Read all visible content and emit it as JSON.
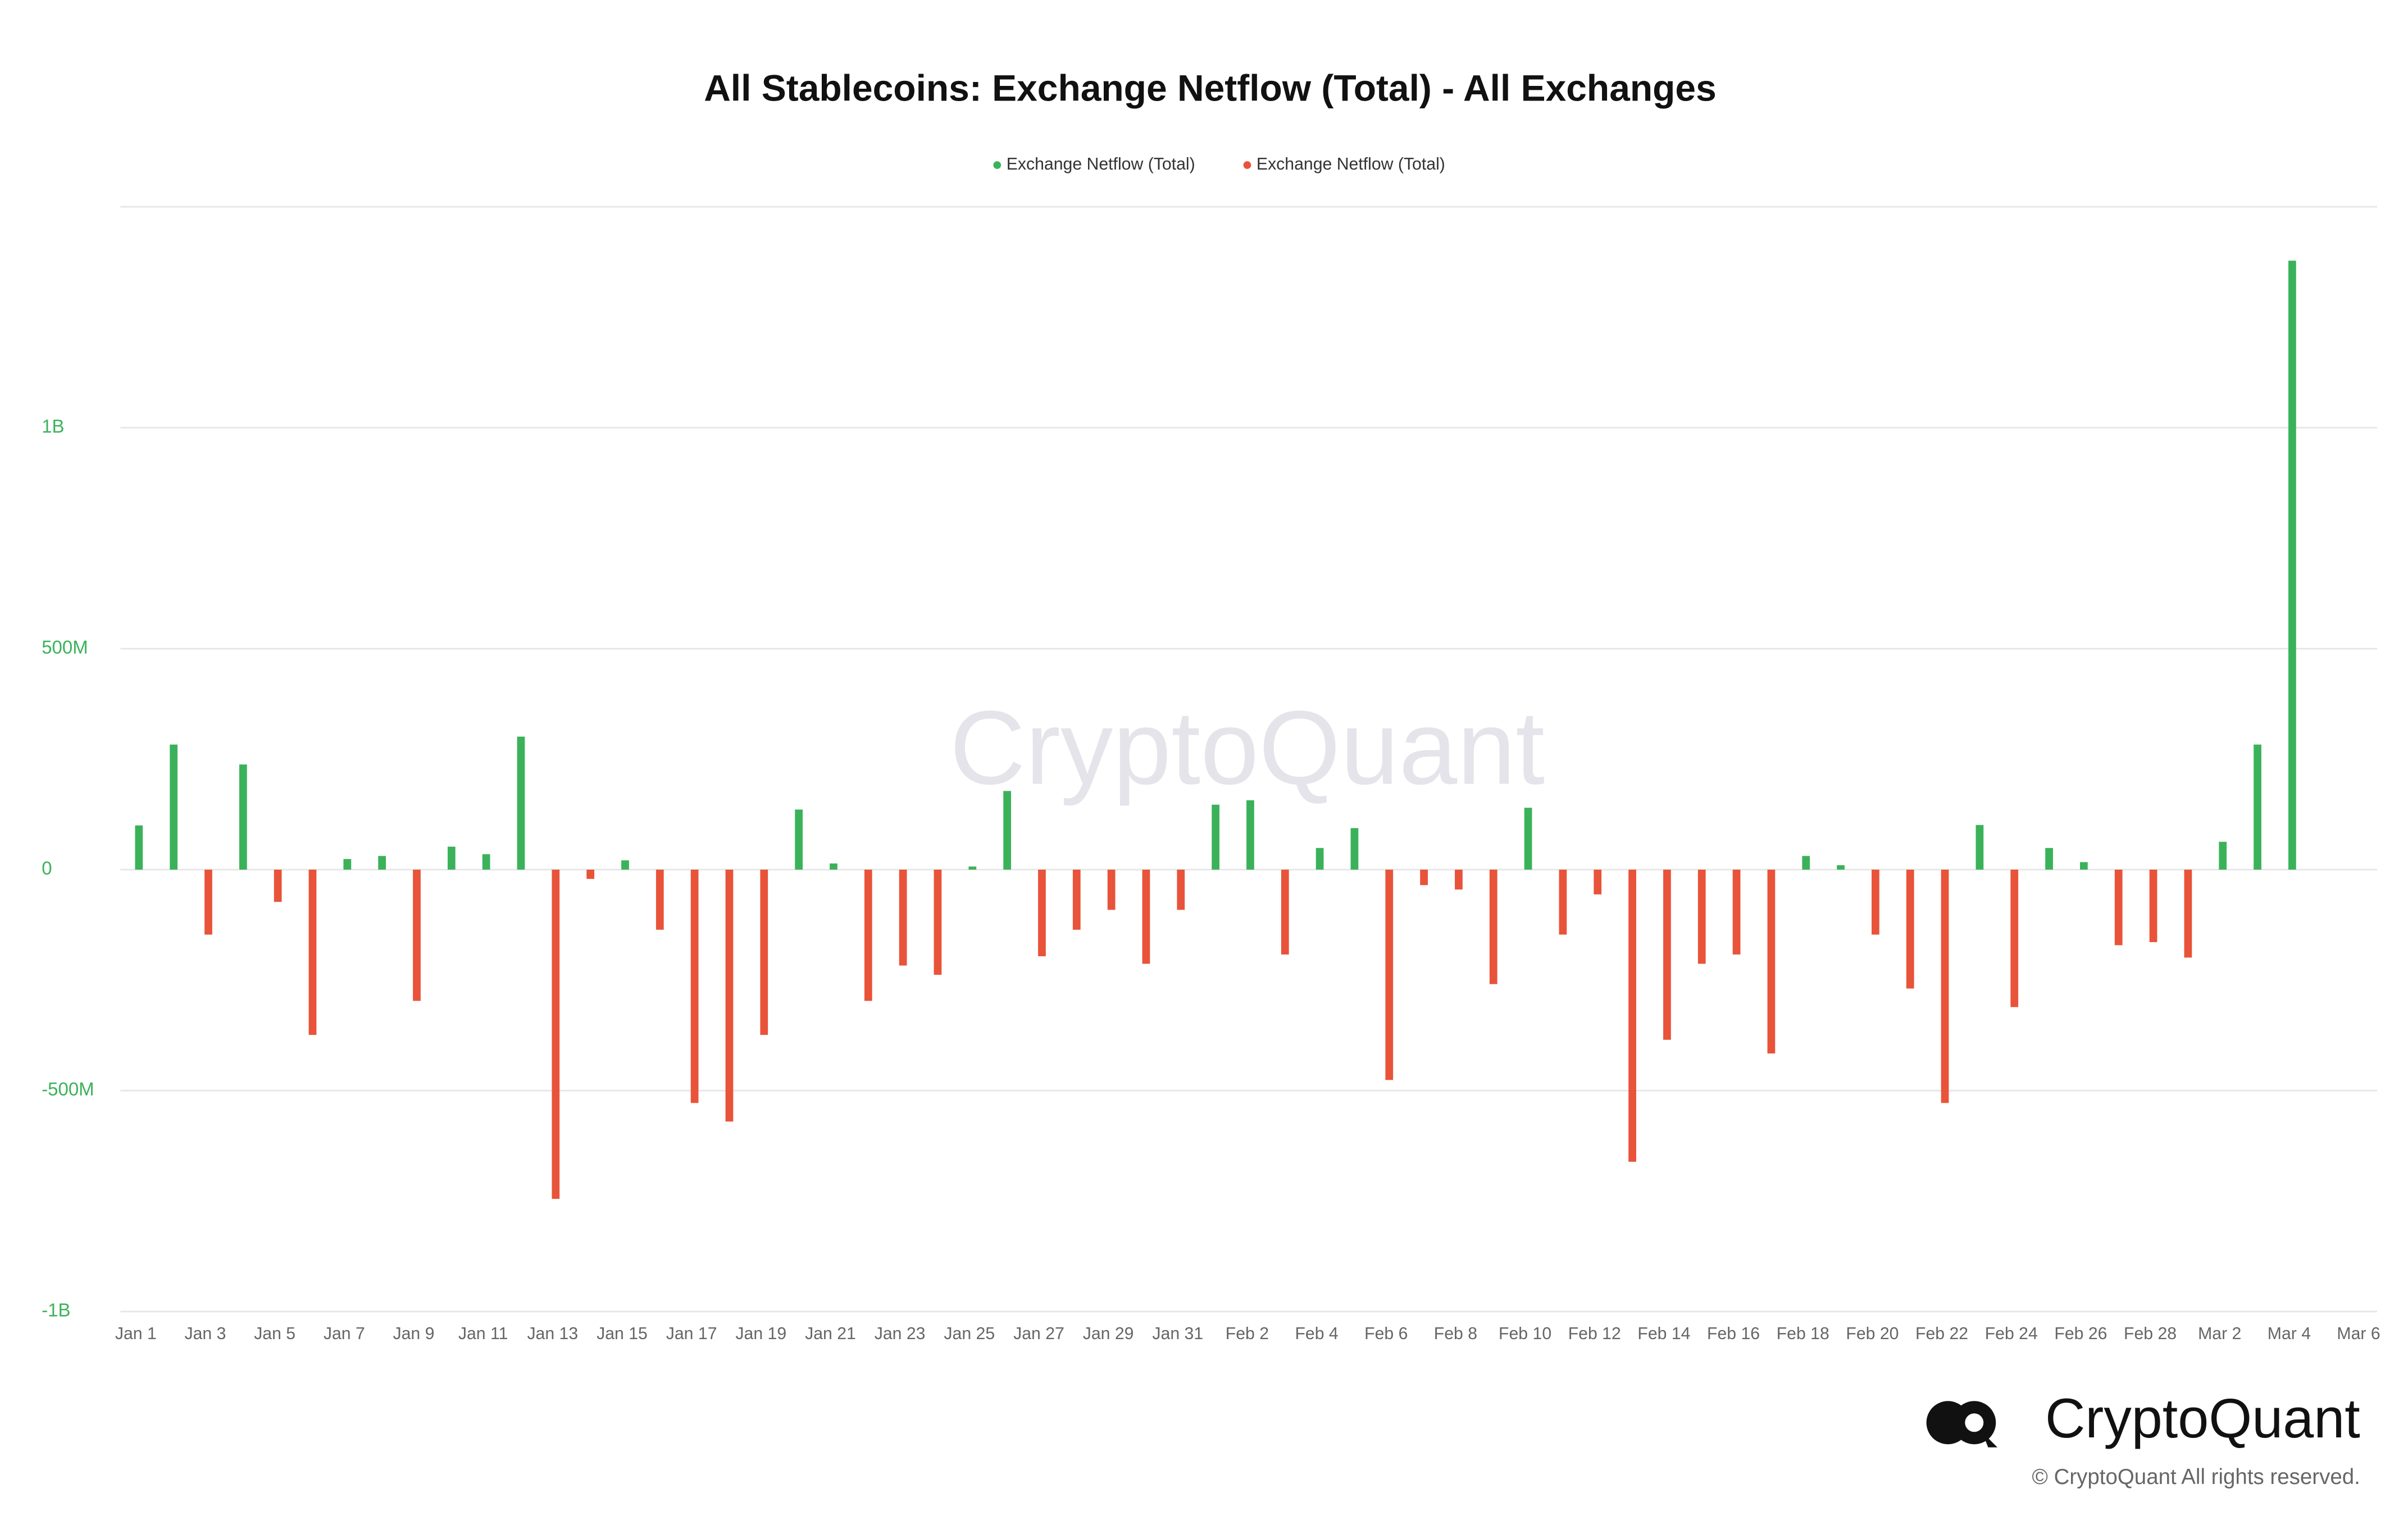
{
  "chart_data": {
    "type": "bar",
    "title": "All Stablecoins: Exchange Netflow (Total) - All Exchanges",
    "watermark": "CryptoQuant",
    "brand": "CryptoQuant",
    "copyright": "© CryptoQuant All rights reserved.",
    "categories": [
      "Jan 1",
      null,
      "Jan 3",
      null,
      "Jan 5",
      null,
      "Jan 7",
      null,
      "Jan 9",
      null,
      "Jan 11",
      null,
      "Jan 13",
      null,
      "Jan 15",
      null,
      "Jan 17",
      null,
      "Jan 19",
      null,
      "Jan 21",
      null,
      "Jan 23",
      null,
      "Jan 25",
      null,
      "Jan 27",
      null,
      "Jan 29",
      null,
      "Jan 31",
      null,
      "Feb 2",
      null,
      "Feb 4",
      null,
      "Feb 6",
      null,
      "Feb 8",
      null,
      "Feb 10",
      null,
      "Feb 12",
      null,
      "Feb 14",
      null,
      "Feb 16",
      null,
      "Feb 18",
      null,
      "Feb 20",
      null,
      "Feb 22",
      null,
      "Feb 24",
      null,
      "Feb 26",
      null,
      "Feb 28",
      null,
      "Mar 2",
      null,
      "Mar 4",
      null,
      "Mar 6"
    ],
    "series": [
      {
        "name": "Exchange Netflow (Total)",
        "color": "#3bb25a",
        "values": [
          100000000,
          283000000,
          null,
          238000000,
          null,
          null,
          24000000,
          31000000,
          null,
          52000000,
          35000000,
          301000000,
          null,
          null,
          21000000,
          null,
          null,
          null,
          null,
          136000000,
          14000000,
          null,
          null,
          null,
          7000000,
          178000000,
          null,
          null,
          null,
          null,
          null,
          147000000,
          157000000,
          null,
          49000000,
          94000000,
          null,
          null,
          null,
          null,
          140000000,
          null,
          null,
          null,
          null,
          null,
          null,
          null,
          31000000,
          10000000,
          null,
          null,
          null,
          101000000,
          null,
          49000000,
          17000000,
          null,
          null,
          null,
          63000000,
          283000000,
          1378000000,
          null,
          null
        ]
      },
      {
        "name": "Exchange Netflow (Total)",
        "color": "#e8533a",
        "values": [
          null,
          null,
          -147000000,
          null,
          -73000000,
          -374000000,
          null,
          null,
          -297000000,
          null,
          null,
          null,
          -745000000,
          -21000000,
          null,
          -136000000,
          -528000000,
          -570000000,
          -374000000,
          null,
          null,
          -297000000,
          -217000000,
          -238000000,
          null,
          null,
          -196000000,
          -136000000,
          -91000000,
          -213000000,
          -91000000,
          null,
          null,
          -192000000,
          null,
          null,
          -476000000,
          -35000000,
          -45000000,
          -259000000,
          null,
          -147000000,
          -56000000,
          -661000000,
          -385000000,
          -213000000,
          -192000000,
          -416000000,
          null,
          null,
          -147000000,
          -269000000,
          -528000000,
          null,
          -311000000,
          null,
          null,
          -171000000,
          -164000000,
          -199000000,
          null,
          null,
          null,
          null,
          null
        ]
      }
    ],
    "ylim": [
      -1000000000,
      1500000000
    ],
    "yticks": [
      {
        "value": -1000000000,
        "label": "-1B"
      },
      {
        "value": -500000000,
        "label": "-500M"
      },
      0,
      {
        "value": 500000000,
        "label": "500M"
      },
      {
        "value": 1000000000,
        "label": "1B"
      }
    ],
    "grid": true
  }
}
